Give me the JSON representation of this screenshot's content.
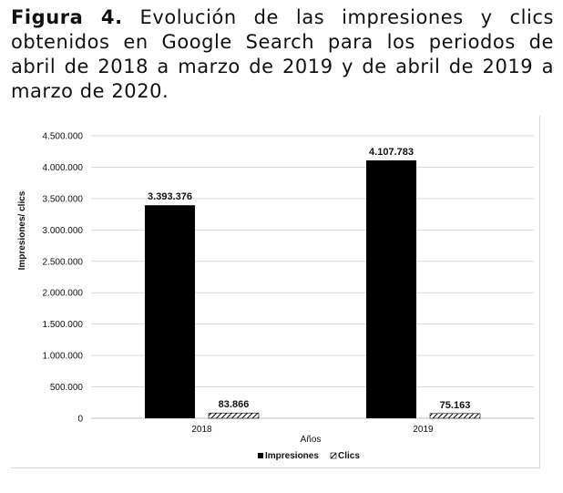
{
  "caption": {
    "label": "Figura 4.",
    "text": "Evolución de las impresiones y clics obtenidos en Google Search para los periodos de abril de 2018 a marzo de 2019 y de abril de 2019 a marzo de 2020."
  },
  "colors": {
    "impresiones": "#000000",
    "clics": "#000000"
  },
  "chart_data": {
    "type": "bar",
    "categories": [
      "2018",
      "2019"
    ],
    "series": [
      {
        "name": "Impresiones",
        "values": [
          3393376,
          4107783
        ],
        "labels": [
          "3.393.376",
          "4.107.783"
        ],
        "fill": "solid"
      },
      {
        "name": "Clics",
        "values": [
          83866,
          75163
        ],
        "labels": [
          "83.866",
          "75.163"
        ],
        "fill": "hatched"
      }
    ],
    "xlabel": "Años",
    "ylabel": "Impresiones/ clics",
    "ylim": [
      0,
      4500000
    ],
    "yticks": [
      0,
      500000,
      1000000,
      1500000,
      2000000,
      2500000,
      3000000,
      3500000,
      4000000,
      4500000
    ],
    "ytick_labels": [
      "0",
      "500.000",
      "1.000.000",
      "1.500.000",
      "2.000.000",
      "2.500.000",
      "3.000.000",
      "3.500.000",
      "4.000.000",
      "4.500.000"
    ],
    "grid": true,
    "legend_position": "bottom"
  }
}
